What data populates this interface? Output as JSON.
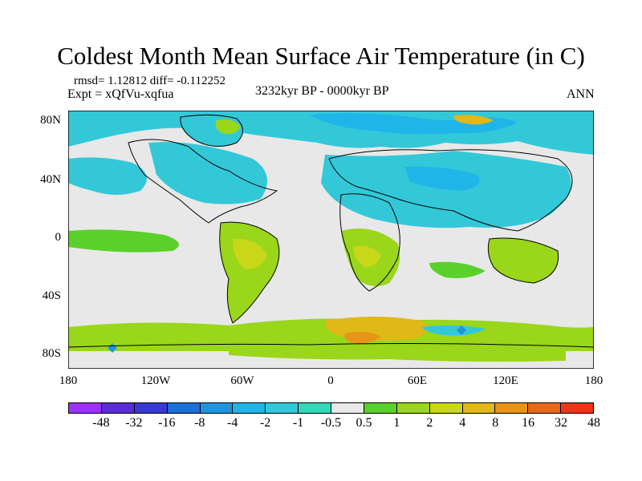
{
  "title": "Coldest Month Mean Surface Air Temperature (in C)",
  "stats": {
    "line1": "rmsd= 1.12812 diff= -0.112252",
    "line2": "Expt = xQfVu-xqfua"
  },
  "period": "3232kyr BP - 0000kyr BP",
  "season": "ANN",
  "axes": {
    "y_ticks": [
      "80N",
      "40N",
      "0",
      "40S",
      "80S"
    ],
    "x_ticks": [
      "180",
      "120W",
      "60W",
      "0",
      "60E",
      "120E",
      "180"
    ]
  },
  "colorbar": {
    "labels": [
      "-48",
      "-32",
      "-16",
      "-8",
      "-4",
      "-2",
      "-1",
      "-0.5",
      "0.5",
      "1",
      "2",
      "4",
      "8",
      "16",
      "32",
      "48"
    ],
    "colors": [
      "#9b30ff",
      "#5b2bd6",
      "#3939d3",
      "#1a6fd8",
      "#1f95e0",
      "#1fb5e8",
      "#33c8d8",
      "#33d8b8",
      "#e8e8e8",
      "#5ad12a",
      "#9ad61a",
      "#c8d818",
      "#e0b818",
      "#e89418",
      "#e86818",
      "#e83818"
    ]
  }
}
